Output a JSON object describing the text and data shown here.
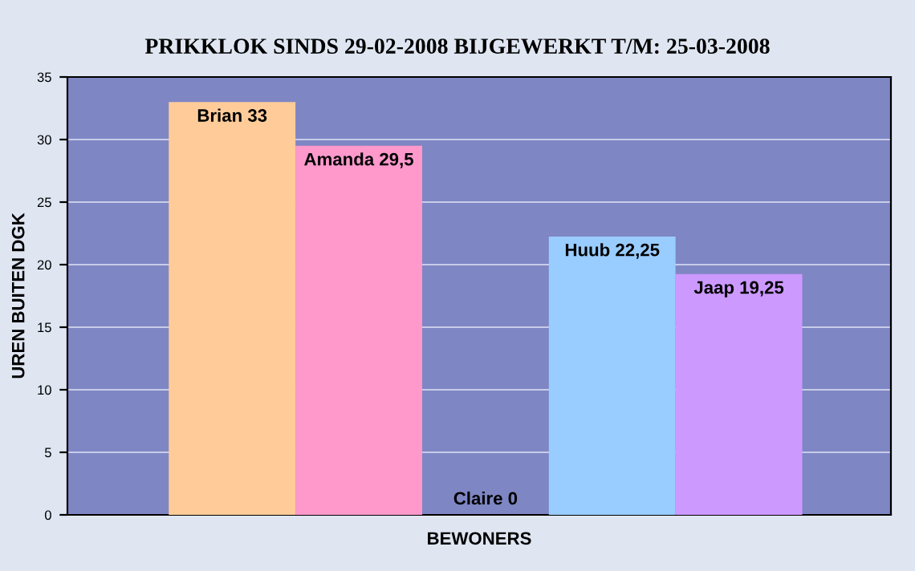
{
  "chart_data": {
    "type": "bar",
    "title": "PRIKKLOK SINDS 29-02-2008 BIJGEWERKT T/M: 25-03-2008",
    "xlabel": "BEWONERS",
    "ylabel": "UREN BUITEN DGK",
    "categories": [
      null,
      null,
      null,
      null,
      null
    ],
    "values": [
      33,
      29.5,
      0,
      22.25,
      19.25
    ],
    "value_labels": [
      "Brian 33",
      "Amanda 29,5",
      "Claire 0",
      "Huub 22,25",
      "Jaap 19,25"
    ],
    "colors": [
      "#ffcc99",
      "#ff99cc",
      "#cccccc",
      "#99ccff",
      "#cc99ff"
    ],
    "ylim": [
      0,
      35
    ],
    "yticks": [
      0,
      5,
      10,
      15,
      20,
      25,
      30,
      35
    ],
    "grid": "y",
    "legend": false
  }
}
